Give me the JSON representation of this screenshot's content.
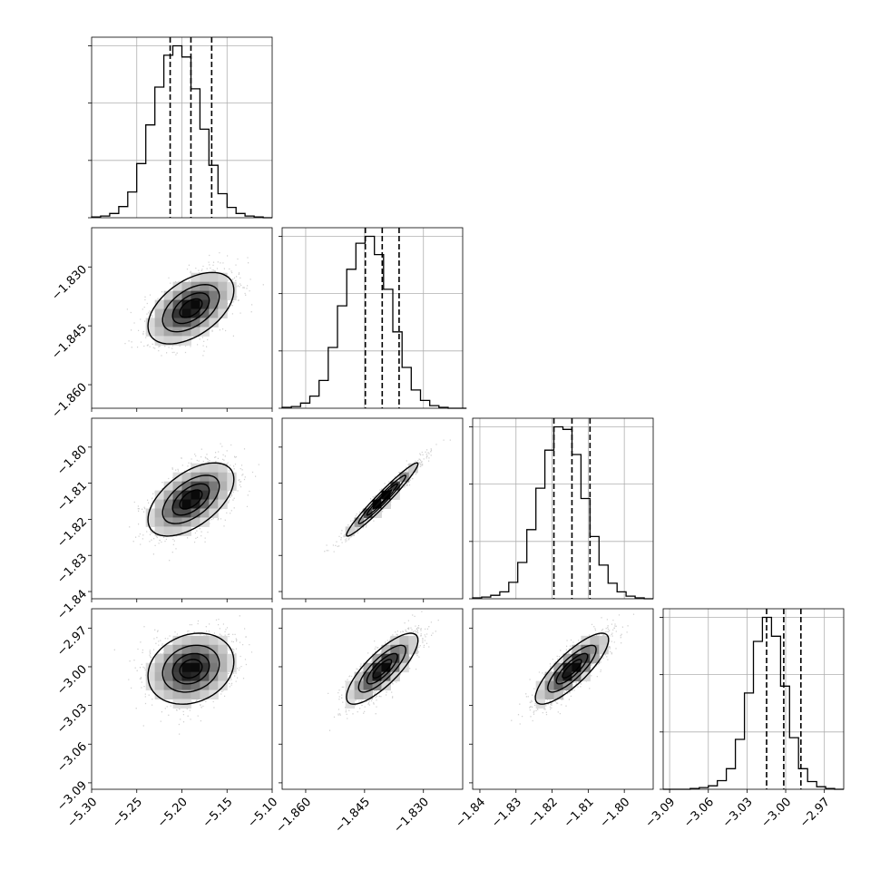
{
  "chart_data": {
    "type": "corner",
    "grid": true,
    "quantiles": [
      0.16,
      0.5,
      0.84
    ],
    "parameters": [
      {
        "range": [
          -5.3,
          -5.1
        ],
        "ticks": [
          -5.3,
          -5.25,
          -5.2,
          -5.15,
          -5.1
        ],
        "tick_labels": [
          "−5.30",
          "−5.25",
          "−5.20",
          "−5.15",
          "−5.10"
        ],
        "mean": -5.19,
        "sd": 0.023,
        "quantile_values": [
          -5.213,
          -5.19,
          -5.167
        ],
        "hist": {
          "start": -5.3,
          "step": 0.01,
          "counts": [
            1,
            2,
            5,
            13,
            30,
            63,
            108,
            152,
            189,
            200,
            187,
            150,
            103,
            61,
            28,
            12,
            5,
            2,
            1,
            0
          ]
        }
      },
      {
        "range": [
          -1.866,
          -1.82
        ],
        "ticks": [
          -1.86,
          -1.845,
          -1.83
        ],
        "tick_labels": [
          "−1.860",
          "−1.845",
          "−1.830"
        ],
        "mean": -1.8405,
        "sd": 0.0044,
        "quantile_values": [
          -1.8448,
          -1.8405,
          -1.8362
        ],
        "hist": {
          "start": -1.866,
          "step": 0.00235,
          "counts": [
            1,
            2,
            6,
            14,
            32,
            70,
            118,
            160,
            190,
            198,
            177,
            137,
            88,
            47,
            21,
            9,
            3,
            1,
            0,
            0
          ]
        }
      },
      {
        "range": [
          -1.842,
          -1.792
        ],
        "ticks": [
          -1.84,
          -1.83,
          -1.82,
          -1.81,
          -1.8
        ],
        "tick_labels": [
          "−1.84",
          "−1.83",
          "−1.82",
          "−1.81",
          "−1.80"
        ],
        "mean": -1.8145,
        "sd": 0.0049,
        "quantile_values": [
          -1.8195,
          -1.8145,
          -1.8095
        ],
        "hist": {
          "start": -1.842,
          "step": 0.0025,
          "counts": [
            1,
            2,
            4,
            8,
            19,
            42,
            80,
            128,
            172,
            199,
            196,
            167,
            116,
            72,
            39,
            18,
            8,
            3,
            1,
            0
          ]
        }
      },
      {
        "range": [
          -3.095,
          -2.955
        ],
        "ticks": [
          -3.09,
          -3.06,
          -3.03,
          -3.0,
          -2.97
        ],
        "tick_labels": [
          "−3.09",
          "−3.06",
          "−3.03",
          "−3.00",
          "−2.97"
        ],
        "mean": -3.0015,
        "sd": 0.0133,
        "quantile_values": [
          -3.0148,
          -3.0015,
          -2.9882
        ],
        "hist": {
          "start": -3.095,
          "step": 0.007,
          "counts": [
            0,
            0,
            0,
            1,
            2,
            4,
            10,
            24,
            58,
            112,
            172,
            200,
            178,
            120,
            60,
            24,
            9,
            3,
            1,
            0
          ]
        }
      }
    ],
    "correlations": [
      [
        1.0,
        0.5,
        0.55,
        0.2
      ],
      [
        0.5,
        1.0,
        0.97,
        0.8
      ],
      [
        0.55,
        0.97,
        1.0,
        0.82
      ],
      [
        0.2,
        0.8,
        0.82,
        1.0
      ]
    ]
  }
}
